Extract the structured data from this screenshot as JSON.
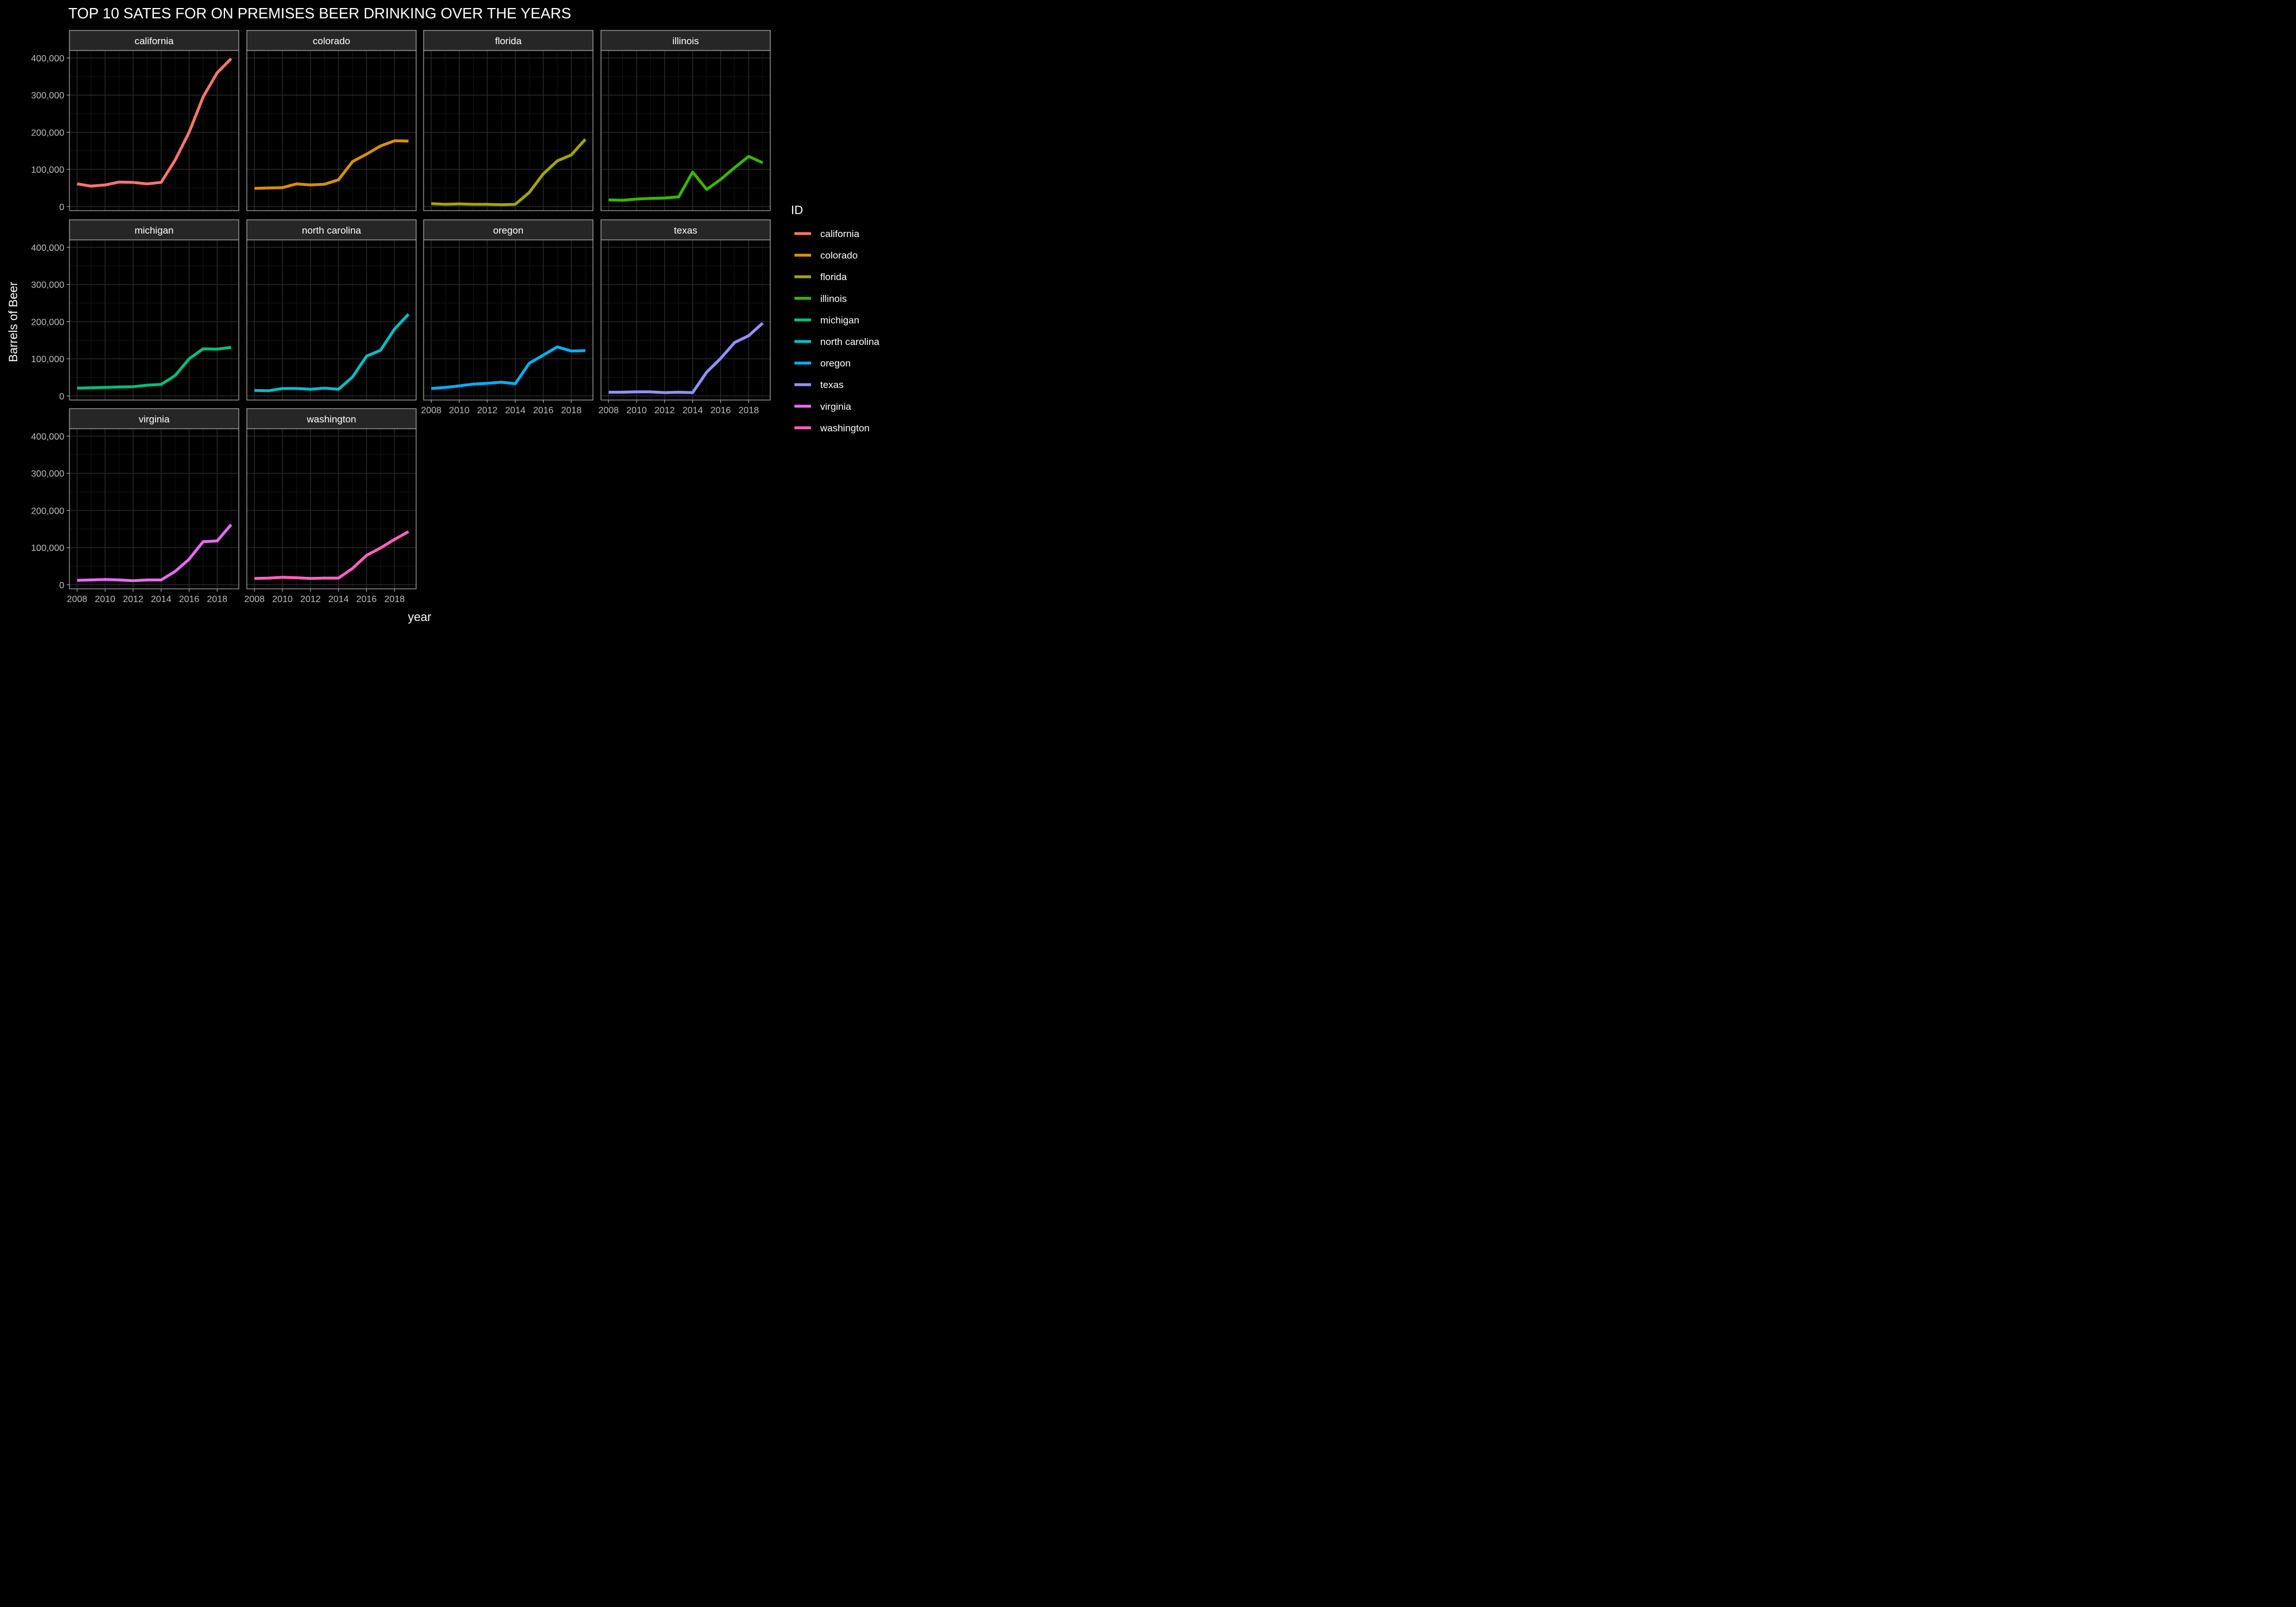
{
  "chart_data": {
    "type": "line",
    "title": "TOP 10 SATES FOR ON PREMISES BEER DRINKING OVER THE YEARS",
    "xlabel": "year",
    "ylabel": "Barrels of Beer",
    "legend_title": "ID",
    "legend_position": "right",
    "theme": "dark",
    "grid": true,
    "facet_layout": "wrap, 4 columns",
    "xlim": [
      2008,
      2019
    ],
    "ylim": [
      0,
      420000
    ],
    "x_ticks": [
      2008,
      2010,
      2012,
      2014,
      2016,
      2018
    ],
    "x_tick_labels": [
      "2008",
      "2010",
      "2012",
      "2014",
      "2016",
      "2018"
    ],
    "y_ticks": [
      0,
      100000,
      200000,
      300000,
      400000
    ],
    "y_tick_labels": [
      "0",
      "100,000",
      "200,000",
      "300,000",
      "400,000"
    ],
    "x": [
      2008,
      2009,
      2010,
      2011,
      2012,
      2013,
      2014,
      2015,
      2016,
      2017,
      2018,
      2019
    ],
    "series": [
      {
        "name": "california",
        "color": "#F8766D",
        "values": [
          61000,
          55000,
          58000,
          66000,
          65000,
          61000,
          65000,
          125000,
          200000,
          295000,
          360000,
          398000
        ]
      },
      {
        "name": "colorado",
        "color": "#D89000",
        "values": [
          49000,
          50000,
          51000,
          61000,
          58000,
          60000,
          72000,
          121000,
          141000,
          163000,
          177000,
          176000
        ]
      },
      {
        "name": "florida",
        "color": "#A3A500",
        "values": [
          8000,
          6000,
          7000,
          6000,
          6000,
          5000,
          6000,
          38000,
          88000,
          123000,
          139000,
          181000
        ]
      },
      {
        "name": "illinois",
        "color": "#39B600",
        "values": [
          18000,
          17000,
          20000,
          22000,
          23000,
          26000,
          93000,
          46000,
          73000,
          105000,
          135000,
          118000
        ]
      },
      {
        "name": "michigan",
        "color": "#00BF7D",
        "values": [
          21000,
          22000,
          23000,
          24000,
          25000,
          29000,
          31000,
          55000,
          100000,
          127000,
          126000,
          131000
        ]
      },
      {
        "name": "north carolina",
        "color": "#00BFC4",
        "values": [
          15000,
          14000,
          20000,
          20000,
          18000,
          21000,
          18000,
          51000,
          107000,
          123000,
          180000,
          220000
        ]
      },
      {
        "name": "oregon",
        "color": "#00B0F6",
        "values": [
          20000,
          23000,
          27000,
          32000,
          34000,
          37000,
          33000,
          88000,
          110000,
          132000,
          121000,
          122000
        ]
      },
      {
        "name": "texas",
        "color": "#9590FF",
        "values": [
          10000,
          10000,
          11000,
          11000,
          9000,
          10000,
          9000,
          64000,
          101000,
          144000,
          162000,
          196000
        ]
      },
      {
        "name": "virginia",
        "color": "#E76BF3",
        "values": [
          12000,
          13000,
          14000,
          13000,
          11000,
          13000,
          13000,
          36000,
          69000,
          116000,
          118000,
          162000
        ]
      },
      {
        "name": "washington",
        "color": "#FF62BC",
        "values": [
          17000,
          18000,
          20000,
          19000,
          17000,
          18000,
          18000,
          44000,
          79000,
          99000,
          122000,
          143000
        ]
      }
    ]
  }
}
